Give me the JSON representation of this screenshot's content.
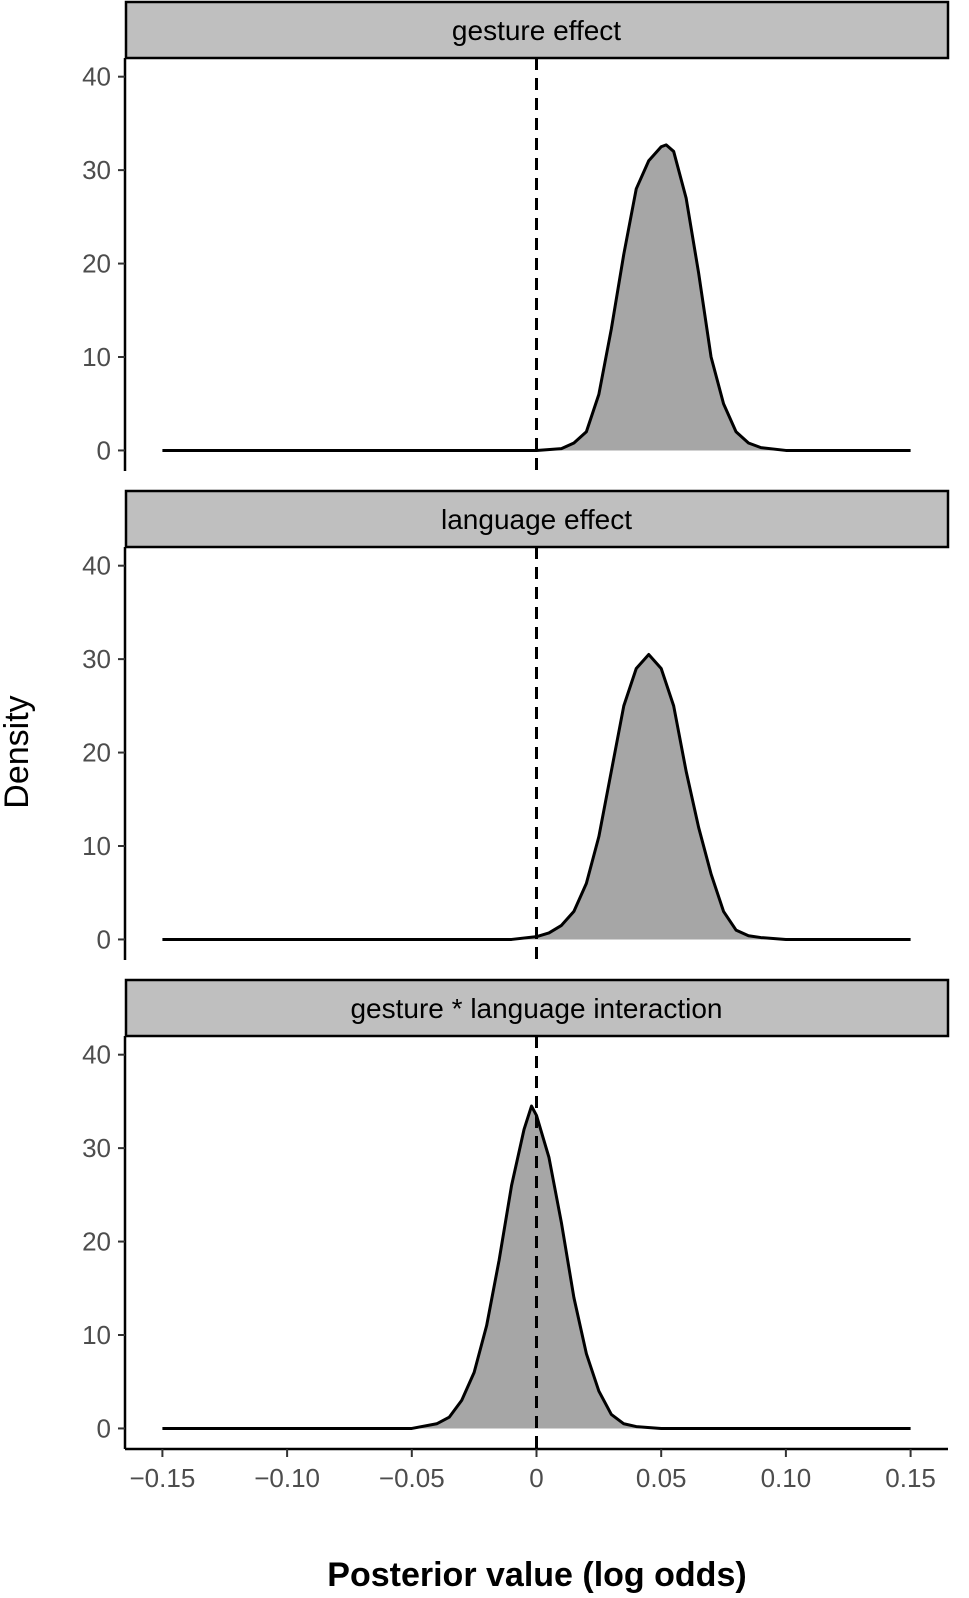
{
  "chart_data": {
    "type": "area",
    "xlabel": "Posterior value (log odds)",
    "ylabel": "Density",
    "xlim": [
      -0.165,
      0.165
    ],
    "ylim": [
      -2.2,
      42
    ],
    "x_ticks": [
      -0.15,
      -0.1,
      -0.05,
      0,
      0.05,
      0.1,
      0.15
    ],
    "x_tick_labels": [
      "−0.15",
      "−0.10",
      "−0.05",
      "0",
      "0.05",
      "0.10",
      "0.15"
    ],
    "y_ticks": [
      0,
      10,
      20,
      30,
      40
    ],
    "y_tick_labels": [
      "0",
      "10",
      "20",
      "30",
      "40"
    ],
    "reference_line": {
      "x": 0,
      "style": "dashed",
      "color": "#000000"
    },
    "fill_color": "#a6a6a6",
    "line_color": "#000000",
    "strip_color": "#bfbfbf",
    "facets": [
      {
        "label": "gesture effect",
        "x": [
          -0.15,
          -0.01,
          0.0,
          0.01,
          0.015,
          0.02,
          0.025,
          0.03,
          0.035,
          0.04,
          0.045,
          0.05,
          0.052,
          0.055,
          0.06,
          0.065,
          0.07,
          0.075,
          0.08,
          0.085,
          0.09,
          0.1,
          0.15
        ],
        "y": [
          0,
          0,
          0,
          0.2,
          0.8,
          2.0,
          6,
          13,
          21,
          28,
          31,
          32.5,
          32.7,
          32,
          27,
          19,
          10,
          5,
          2,
          0.8,
          0.3,
          0,
          0
        ]
      },
      {
        "label": "language effect",
        "x": [
          -0.15,
          -0.01,
          0.0,
          0.005,
          0.01,
          0.015,
          0.02,
          0.025,
          0.03,
          0.035,
          0.04,
          0.045,
          0.05,
          0.055,
          0.06,
          0.065,
          0.07,
          0.075,
          0.08,
          0.085,
          0.09,
          0.1,
          0.15
        ],
        "y": [
          0,
          0,
          0.3,
          0.7,
          1.5,
          3,
          6,
          11,
          18,
          25,
          29,
          30.5,
          29,
          25,
          18,
          12,
          7,
          3,
          1,
          0.4,
          0.2,
          0,
          0
        ]
      },
      {
        "label": "gesture * language interaction",
        "x": [
          -0.15,
          -0.05,
          -0.04,
          -0.035,
          -0.03,
          -0.025,
          -0.02,
          -0.015,
          -0.01,
          -0.005,
          -0.002,
          0.0,
          0.005,
          0.01,
          0.015,
          0.02,
          0.025,
          0.03,
          0.035,
          0.04,
          0.05,
          0.15
        ],
        "y": [
          0,
          0,
          0.5,
          1.2,
          3,
          6,
          11,
          18,
          26,
          32,
          34.5,
          33.5,
          29,
          22,
          14,
          8,
          4,
          1.5,
          0.5,
          0.2,
          0,
          0
        ]
      }
    ]
  }
}
